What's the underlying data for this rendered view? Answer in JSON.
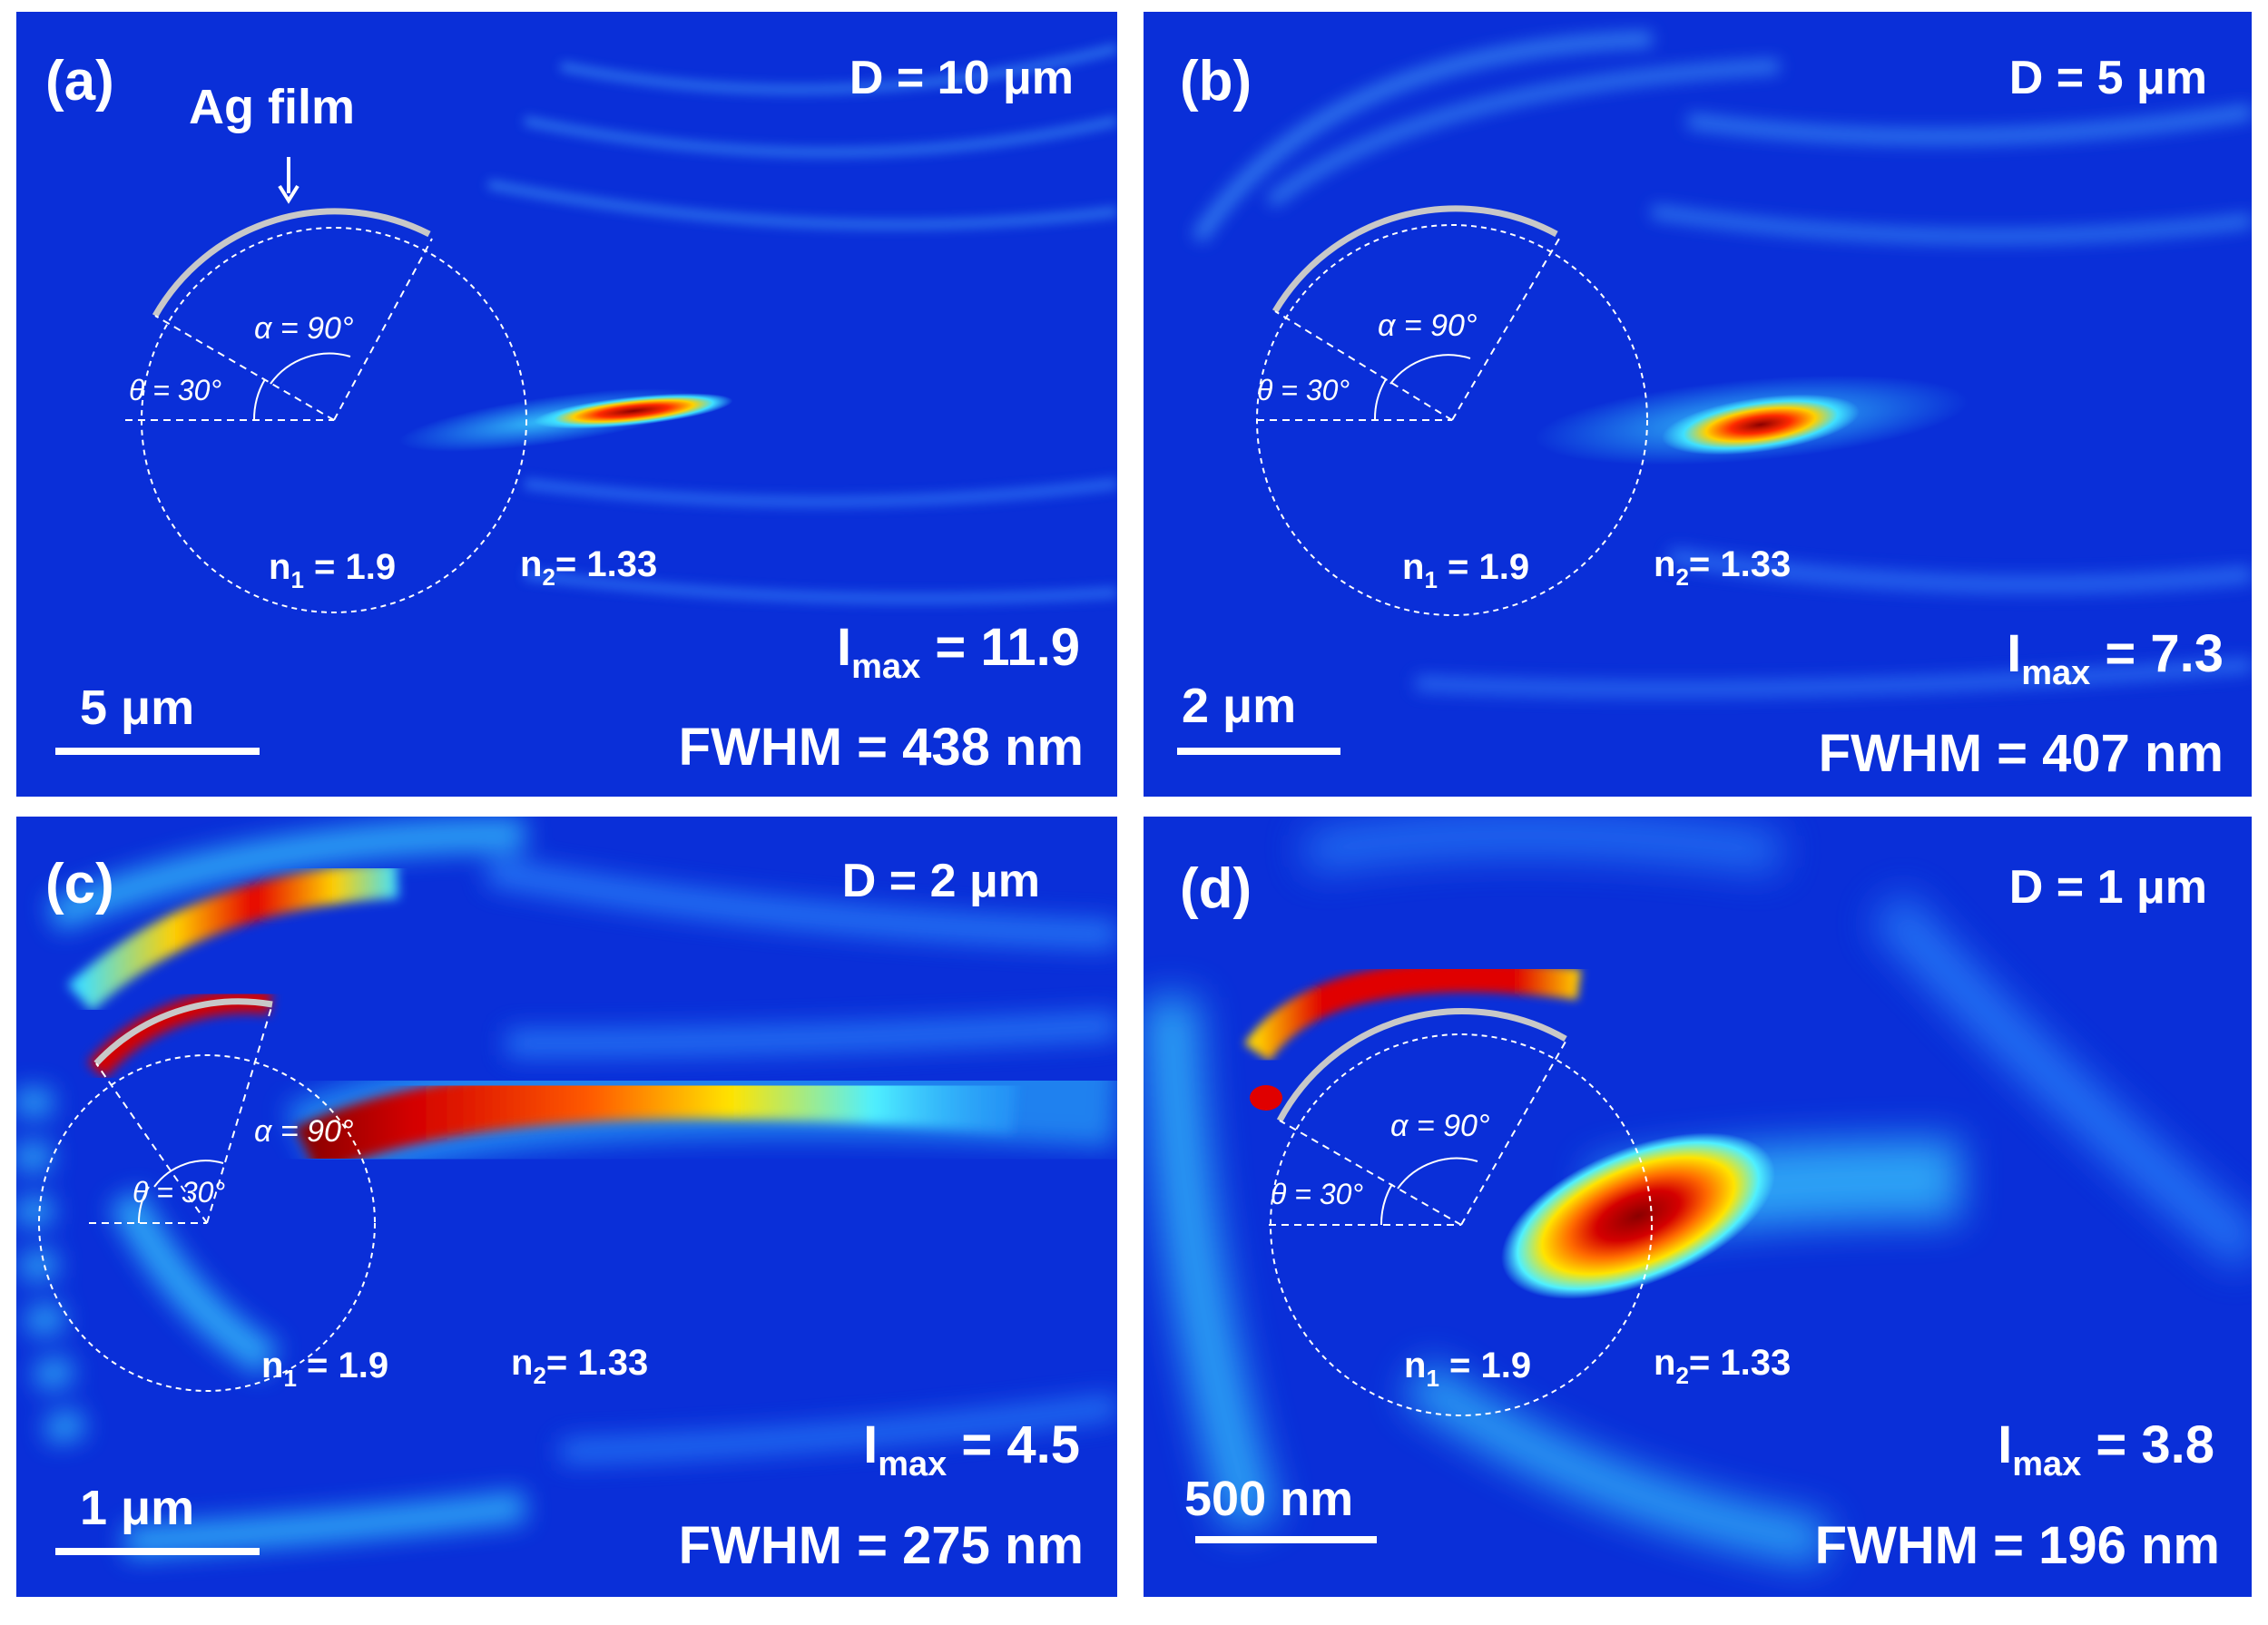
{
  "panels": [
    {
      "id": "a",
      "label": "(a)",
      "d": "D = 10 μm",
      "scalebar": "5 μm",
      "imax": "11.9",
      "fwhm": "FWHM = 438 nm",
      "ag_film": "Ag film"
    },
    {
      "id": "b",
      "label": "(b)",
      "d": "D = 5 μm",
      "scalebar": "2 μm",
      "imax": "7.3",
      "fwhm": "FWHM = 407 nm"
    },
    {
      "id": "c",
      "label": "(c)",
      "d": "D = 2 μm",
      "scalebar": "1 μm",
      "imax": "4.5",
      "fwhm": "FWHM = 275 nm"
    },
    {
      "id": "d",
      "label": "(d)",
      "d": "D = 1 μm",
      "scalebar": "500 nm",
      "imax": "3.8",
      "fwhm": "FWHM = 196 nm"
    }
  ],
  "annotations": {
    "alpha": "α = 90°",
    "theta": "θ = 30°",
    "n1_base": "n",
    "n1_sub": "1",
    "n1_val": " = 1.9",
    "n2_base": "n",
    "n2_sub": "2",
    "n2_val": "= 1.33",
    "imax_base": "I",
    "imax_sub": "max",
    "imax_eq": " = "
  },
  "colors": {
    "background": "#0a2fd8",
    "field_cyan": "#2fd4ff",
    "field_red": "#c40000",
    "film": "#c8c8c8"
  }
}
